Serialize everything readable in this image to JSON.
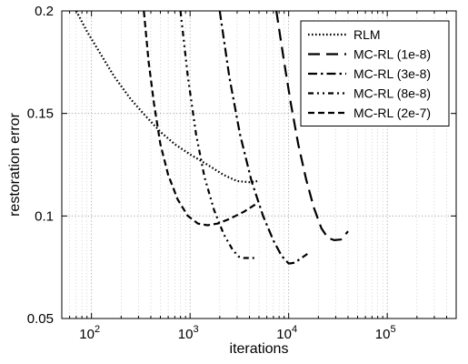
{
  "chart_data": {
    "type": "line",
    "xlabel": "iterations",
    "ylabel": "restoration error",
    "x_scale": "log",
    "xlim": [
      50,
      500000
    ],
    "ylim": [
      0.05,
      0.2
    ],
    "x_ticks": [
      100,
      1000,
      10000,
      100000
    ],
    "x_tick_labels": [
      {
        "base": "10",
        "exp": "2"
      },
      {
        "base": "10",
        "exp": "3"
      },
      {
        "base": "10",
        "exp": "4"
      },
      {
        "base": "10",
        "exp": "5"
      }
    ],
    "y_ticks": [
      0.05,
      0.1,
      0.15,
      0.2
    ],
    "y_tick_labels": [
      "0.05",
      "0.1",
      "0.15",
      "0.2"
    ],
    "grid": true,
    "legend_position": "top-right",
    "series": [
      {
        "name": "RLM",
        "dash": "dotted",
        "points": [
          [
            70,
            0.2
          ],
          [
            90,
            0.19
          ],
          [
            120,
            0.18
          ],
          [
            170,
            0.168
          ],
          [
            250,
            0.157
          ],
          [
            350,
            0.149
          ],
          [
            500,
            0.141
          ],
          [
            700,
            0.135
          ],
          [
            1000,
            0.13
          ],
          [
            1500,
            0.125
          ],
          [
            2200,
            0.12
          ],
          [
            3000,
            0.117
          ],
          [
            4000,
            0.1165
          ],
          [
            4900,
            0.117
          ]
        ]
      },
      {
        "name": "MC-RL (1e-8)",
        "dash": "long-dash",
        "points": [
          [
            7500,
            0.2
          ],
          [
            9000,
            0.175
          ],
          [
            10500,
            0.155
          ],
          [
            12500,
            0.135
          ],
          [
            15000,
            0.118
          ],
          [
            18000,
            0.104
          ],
          [
            21500,
            0.094
          ],
          [
            25000,
            0.0893
          ],
          [
            29000,
            0.0882
          ],
          [
            34000,
            0.0885
          ],
          [
            40000,
            0.0925
          ]
        ]
      },
      {
        "name": "MC-RL (3e-8)",
        "dash": "dash-dot",
        "points": [
          [
            2000,
            0.2
          ],
          [
            2500,
            0.168
          ],
          [
            3200,
            0.14
          ],
          [
            4200,
            0.117
          ],
          [
            5500,
            0.1
          ],
          [
            7000,
            0.088
          ],
          [
            8500,
            0.0805
          ],
          [
            10000,
            0.0768
          ],
          [
            11500,
            0.0772
          ],
          [
            13500,
            0.0795
          ],
          [
            15500,
            0.0815
          ]
        ]
      },
      {
        "name": "MC-RL (8e-8)",
        "dash": "dash-dot-dot",
        "points": [
          [
            800,
            0.2
          ],
          [
            950,
            0.168
          ],
          [
            1150,
            0.14
          ],
          [
            1400,
            0.119
          ],
          [
            1750,
            0.103
          ],
          [
            2200,
            0.091
          ],
          [
            2700,
            0.0835
          ],
          [
            3100,
            0.0802
          ],
          [
            3500,
            0.0795
          ],
          [
            4000,
            0.0795
          ],
          [
            4500,
            0.0795
          ]
        ]
      },
      {
        "name": "MC-RL (2e-7)",
        "dash": "dash",
        "points": [
          [
            340,
            0.2
          ],
          [
            380,
            0.175
          ],
          [
            430,
            0.155
          ],
          [
            500,
            0.135
          ],
          [
            600,
            0.12
          ],
          [
            750,
            0.108
          ],
          [
            950,
            0.1
          ],
          [
            1200,
            0.0963
          ],
          [
            1500,
            0.0955
          ],
          [
            1900,
            0.0963
          ],
          [
            2500,
            0.0985
          ],
          [
            3500,
            0.102
          ],
          [
            4900,
            0.1065
          ]
        ]
      }
    ]
  }
}
